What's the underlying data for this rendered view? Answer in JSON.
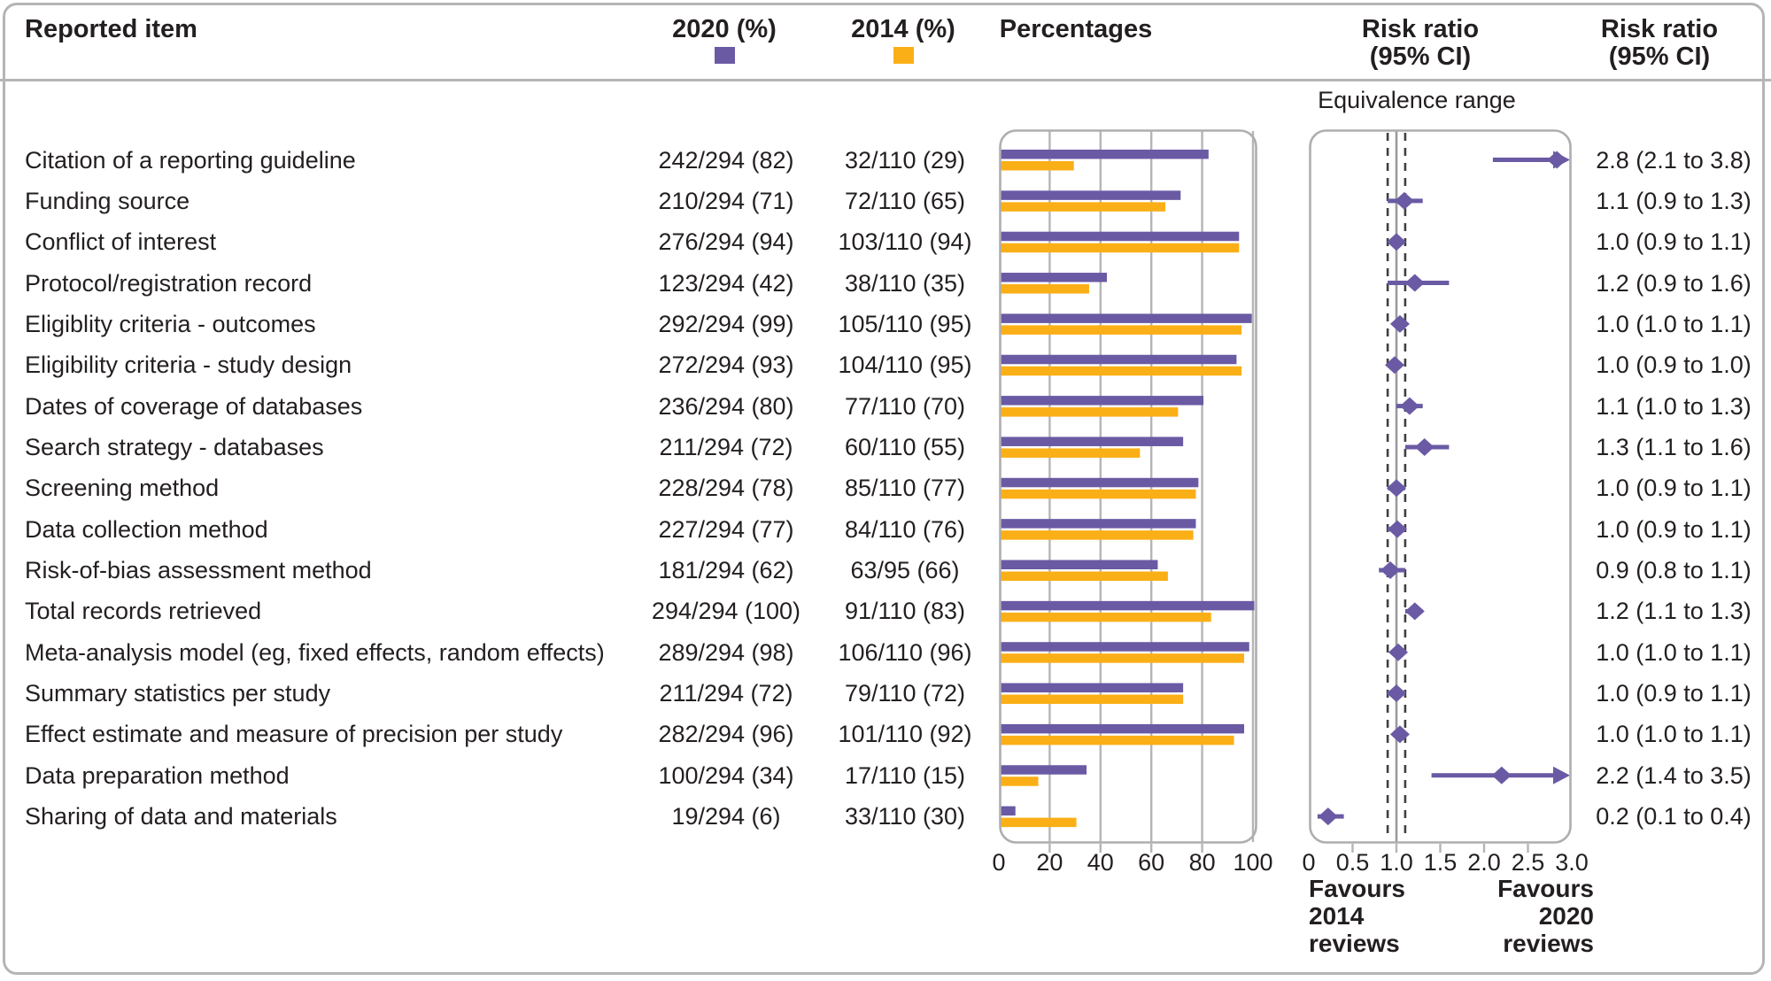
{
  "header": {
    "reported_item": "Reported item",
    "col_2020": "2020 (%)",
    "col_2014": "2014 (%)",
    "percentages": "Percentages",
    "risk_ratio_forest": "Risk ratio\n(95% CI)",
    "risk_ratio_text": "Risk ratio\n(95% CI)"
  },
  "equivalence_label": "Equivalence range",
  "footer": {
    "favours_left": "Favours\n2014\nreviews",
    "favours_right": "Favours\n2020\nreviews"
  },
  "colors": {
    "purple": "#6a5aa4",
    "orange": "#fbaf17",
    "text": "#231f20",
    "panel_border": "#aeaeb1",
    "grid": "#b5b5b7",
    "equivalence_dash": "#404042",
    "reference_line": "#9b9b9d"
  },
  "chart_data": {
    "type": "bar+forest",
    "title": "",
    "bar_axis": {
      "label_row": "Percentages",
      "ticks": [
        0,
        20,
        40,
        60,
        80,
        100
      ],
      "range": [
        0,
        100
      ],
      "grid": true
    },
    "rr_axis": {
      "ticks": [
        "0",
        "0.5",
        "1.0",
        "1.5",
        "2.0",
        "2.5",
        "3.0"
      ],
      "tick_values": [
        0,
        0.5,
        1.0,
        1.5,
        2.0,
        2.5,
        3.0
      ],
      "range": [
        0,
        3.0
      ],
      "reference": 1.0,
      "equivalence_range": [
        0.9,
        1.1
      ]
    },
    "series_legend": [
      {
        "name": "2020 (%)",
        "color": "#6a5aa4"
      },
      {
        "name": "2014 (%)",
        "color": "#fbaf17"
      }
    ],
    "items": [
      {
        "label": "Citation of a reporting guideline",
        "v2020": "242/294 (82)",
        "p2020": 82,
        "v2014": "32/110 (29)",
        "p2014": 29,
        "rr": 2.83,
        "lo": 2.1,
        "hi": 3.8,
        "arrow": true,
        "ci_text": "2.8 (2.1 to 3.8)"
      },
      {
        "label": "Funding source",
        "v2020": "210/294 (71)",
        "p2020": 71,
        "v2014": "72/110 (65)",
        "p2014": 65,
        "rr": 1.09,
        "lo": 0.9,
        "hi": 1.3,
        "arrow": false,
        "ci_text": "1.1 (0.9 to 1.3)"
      },
      {
        "label": "Conflict of interest",
        "v2020": "276/294 (94)",
        "p2020": 94,
        "v2014": "103/110 (94)",
        "p2014": 94,
        "rr": 1.0,
        "lo": 0.92,
        "hi": 1.08,
        "arrow": false,
        "ci_text": "1.0 (0.9 to 1.1)"
      },
      {
        "label": "Protocol/registration record",
        "v2020": "123/294 (42)",
        "p2020": 42,
        "v2014": "38/110 (35)",
        "p2014": 35,
        "rr": 1.21,
        "lo": 0.9,
        "hi": 1.6,
        "arrow": false,
        "ci_text": "1.2 (0.9 to 1.6)"
      },
      {
        "label": "Eligiblity criteria - outcomes",
        "v2020": "292/294 (99)",
        "p2020": 99,
        "v2014": "105/110 (95)",
        "p2014": 95,
        "rr": 1.04,
        "lo": 1.0,
        "hi": 1.1,
        "arrow": false,
        "ci_text": "1.0 (1.0 to 1.1)"
      },
      {
        "label": "Eligibility criteria - study design",
        "v2020": "272/294 (93)",
        "p2020": 93,
        "v2014": "104/110 (95)",
        "p2014": 95,
        "rr": 0.98,
        "lo": 0.92,
        "hi": 1.04,
        "arrow": false,
        "ci_text": "1.0 (0.9 to 1.0)"
      },
      {
        "label": "Dates of coverage of databases",
        "v2020": "236/294 (80)",
        "p2020": 80,
        "v2014": "77/110 (70)",
        "p2014": 70,
        "rr": 1.15,
        "lo": 1.0,
        "hi": 1.3,
        "arrow": false,
        "ci_text": "1.1 (1.0 to 1.3)"
      },
      {
        "label": "Search strategy - databases",
        "v2020": "211/294 (72)",
        "p2020": 72,
        "v2014": "60/110 (55)",
        "p2014": 55,
        "rr": 1.32,
        "lo": 1.1,
        "hi": 1.6,
        "arrow": false,
        "ci_text": "1.3 (1.1 to 1.6)"
      },
      {
        "label": "Screening method",
        "v2020": "228/294 (78)",
        "p2020": 78,
        "v2014": "85/110 (77)",
        "p2014": 77,
        "rr": 1.0,
        "lo": 0.9,
        "hi": 1.1,
        "arrow": false,
        "ci_text": "1.0 (0.9 to 1.1)"
      },
      {
        "label": "Data collection method",
        "v2020": "227/294 (77)",
        "p2020": 77,
        "v2014": "84/110 (76)",
        "p2014": 76,
        "rr": 1.01,
        "lo": 0.9,
        "hi": 1.1,
        "arrow": false,
        "ci_text": "1.0 (0.9 to 1.1)"
      },
      {
        "label": "Risk-of-bias assessment method",
        "v2020": "181/294 (62)",
        "p2020": 62,
        "v2014": "63/95 (66)",
        "p2014": 66,
        "rr": 0.93,
        "lo": 0.8,
        "hi": 1.1,
        "arrow": false,
        "ci_text": "0.9 (0.8 to 1.1)"
      },
      {
        "label": "Total records retrieved",
        "v2020": "294/294 (100)",
        "p2020": 100,
        "v2014": "91/110 (83)",
        "p2014": 83,
        "rr": 1.21,
        "lo": 1.1,
        "hi": 1.3,
        "arrow": false,
        "ci_text": "1.2 (1.1 to 1.3)"
      },
      {
        "label": "Meta-analysis model (eg, fixed effects, random effects)",
        "v2020": "289/294 (98)",
        "p2020": 98,
        "v2014": "106/110 (96)",
        "p2014": 96,
        "rr": 1.02,
        "lo": 0.98,
        "hi": 1.08,
        "arrow": false,
        "ci_text": "1.0 (1.0 to 1.1)"
      },
      {
        "label": "Summary statistics per study",
        "v2020": "211/294 (72)",
        "p2020": 72,
        "v2014": "79/110 (72)",
        "p2014": 72,
        "rr": 1.0,
        "lo": 0.9,
        "hi": 1.1,
        "arrow": false,
        "ci_text": "1.0 (0.9 to 1.1)"
      },
      {
        "label": "Effect estimate and measure of precision per study",
        "v2020": "282/294 (96)",
        "p2020": 96,
        "v2014": "101/110 (92)",
        "p2014": 92,
        "rr": 1.04,
        "lo": 1.0,
        "hi": 1.09,
        "arrow": false,
        "ci_text": "1.0 (1.0 to 1.1)"
      },
      {
        "label": "Data preparation method",
        "v2020": "100/294 (34)",
        "p2020": 34,
        "v2014": "17/110 (15)",
        "p2014": 15,
        "rr": 2.2,
        "lo": 1.4,
        "hi": 3.5,
        "arrow": true,
        "ci_text": "2.2 (1.4 to 3.5)"
      },
      {
        "label": "Sharing of data and materials",
        "v2020": "19/294 (6)",
        "p2020": 6,
        "v2014": "33/110 (30)",
        "p2014": 30,
        "rr": 0.22,
        "lo": 0.1,
        "hi": 0.4,
        "arrow": false,
        "ci_text": "0.2 (0.1 to 0.4)"
      }
    ]
  }
}
